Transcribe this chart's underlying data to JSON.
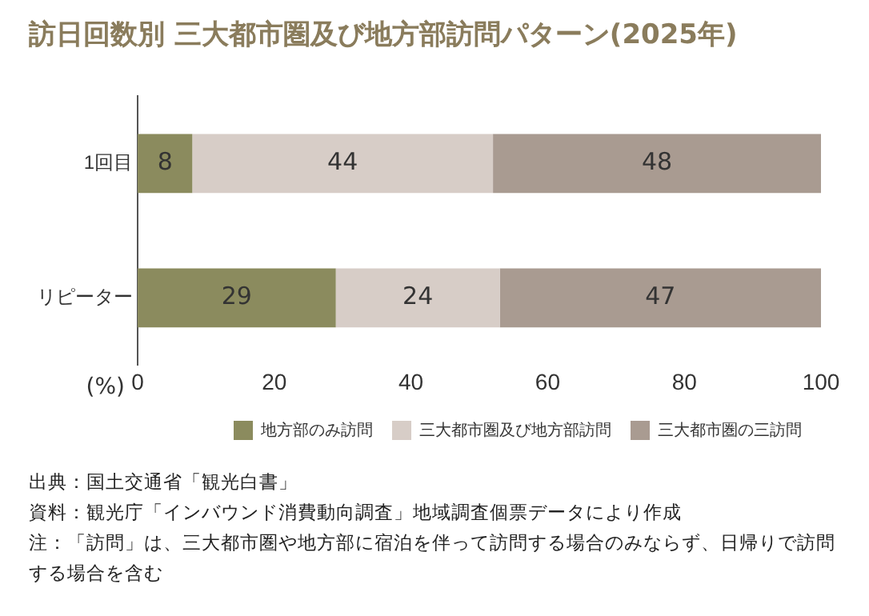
{
  "chart_data": {
    "type": "bar",
    "orientation": "horizontal",
    "stacked": true,
    "title": "訪日回数別 三大都市圏及び地方部訪問パターン(2025年)",
    "xlabel": "(%)",
    "categories": [
      "1回目",
      "リピーター"
    ],
    "series": [
      {
        "name": "地方部のみ訪問",
        "color": "#8b8b5e",
        "values": [
          8,
          29
        ]
      },
      {
        "name": "三大都市圏及び地方部訪問",
        "color": "#d7cdc7",
        "values": [
          44,
          24
        ]
      },
      {
        "name": "三大都市圏の三訪問",
        "color": "#a99b91",
        "values": [
          48,
          47
        ]
      }
    ],
    "xlim": [
      0,
      100
    ],
    "xticks": [
      0,
      20,
      40,
      60,
      80,
      100
    ],
    "grid": false,
    "legend": "bottom",
    "data_labels": true,
    "annotations": [
      "出典：国土交通省「観光白書」",
      "資料：観光庁「インバウンド消費動向調査」地域調査個票データにより作成",
      "注：「訪問」は、三大都市圏や地方部に宿泊を伴って訪問する場合のみならず、日帰りで訪問する場合を含む"
    ]
  }
}
